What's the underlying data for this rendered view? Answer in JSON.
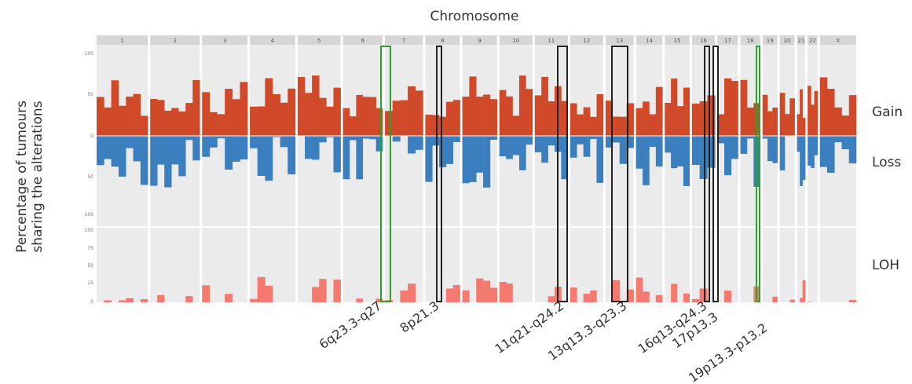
{
  "chart_data": {
    "type": "bar",
    "title": "Chromosome",
    "ylabel_line1": "Percentage of tumours",
    "ylabel_line2": "sharing the alterations",
    "panels": [
      {
        "name": "Gain",
        "label": "Gain"
      },
      {
        "name": "Loss",
        "label": "Loss"
      },
      {
        "name": "LOH",
        "label": "LOH"
      }
    ],
    "chromosomes": [
      "1",
      "2",
      "3",
      "4",
      "5",
      "6",
      "7",
      "8",
      "9",
      "10",
      "11",
      "12",
      "13",
      "14",
      "15",
      "16",
      "17",
      "18",
      "19",
      "20",
      "21",
      "22",
      "X"
    ],
    "regions": [
      {
        "label": "6q23.3-q27",
        "chrom": "6",
        "color": "#2ca02c"
      },
      {
        "label": "8p21.3",
        "chrom": "8",
        "color": "#222222"
      },
      {
        "label": "11q21-q24.2",
        "chrom": "11",
        "color": "#222222"
      },
      {
        "label": "13q13.3-q23.3",
        "chrom": "13",
        "color": "#222222"
      },
      {
        "label": "16q13-q24.3",
        "chrom": "16",
        "color": "#222222"
      },
      {
        "label": "17p13.3",
        "chrom": "17",
        "color": "#222222"
      },
      {
        "label": "19p13.3-p13.2",
        "chrom": "19",
        "color": "#2ca02c"
      }
    ],
    "series": [
      {
        "name": "Gain",
        "color": "#d04a2a"
      },
      {
        "name": "Loss",
        "color": "#3b7fbf"
      },
      {
        "name": "LOH",
        "color": "#f47a70"
      }
    ],
    "grid": true,
    "legend": "right"
  }
}
